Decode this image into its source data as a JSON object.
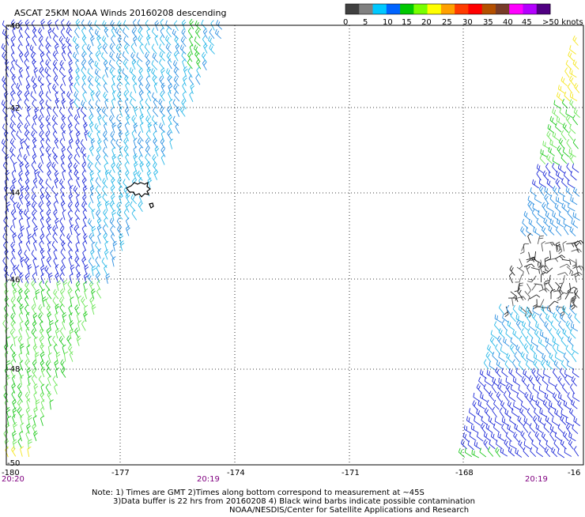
{
  "title": "ASCAT 25KM NOAA Winds 20160208 descending",
  "legend": {
    "colors": [
      "#404040",
      "#808080",
      "#00c8ff",
      "#0064ff",
      "#00c800",
      "#78ff00",
      "#ffff00",
      "#ffa000",
      "#ff3c00",
      "#ff0000",
      "#b45000",
      "#783c28",
      "#ff00ff",
      "#b400ff",
      "#500082"
    ],
    "labels": [
      "0",
      "5",
      "10",
      "15",
      "20",
      "25",
      "30",
      "35",
      "40",
      "45",
      ">50 knots"
    ]
  },
  "axes": {
    "lon_labels": [
      "-180",
      "-177",
      "-174",
      "-171",
      "-168",
      "-16"
    ],
    "lat_labels": [
      "-40",
      "-42",
      "-44",
      "-46",
      "-48",
      "-50"
    ]
  },
  "times": [
    "20:20",
    "20:19",
    "20:19"
  ],
  "notes": [
    "Note: 1) Times are GMT 2)Times along bottom correspond to measurement at ~45S",
    "3)Data buffer is 22 hrs from 20160208 4) Black wind barbs indicate possible contamination",
    "NOAA/NESDIS/Center for Satellite Applications and Research"
  ]
}
